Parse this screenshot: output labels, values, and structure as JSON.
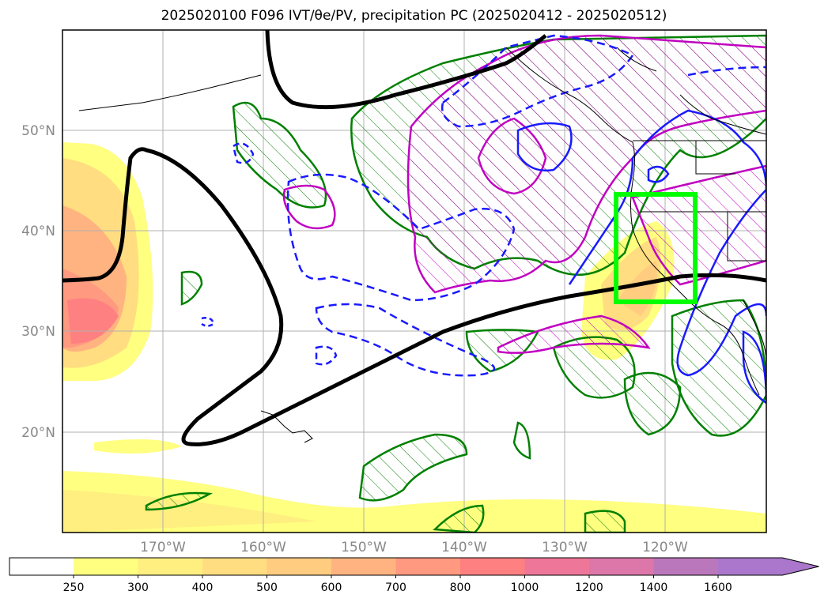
{
  "title": "2025020100 F096 IVT/θe/PV, precipitation PC (2025020412 - 2025020512)",
  "map": {
    "lat_labels": [
      "50°N",
      "40°N",
      "30°N",
      "20°N"
    ],
    "lon_labels": [
      "170°W",
      "160°W",
      "150°W",
      "140°W",
      "130°W",
      "120°W"
    ],
    "highlight_box_color": "#00ff00",
    "contour_colors": {
      "theta_e": "#000000",
      "pv_solid": "#1a1aff",
      "pv_dashed": "#1a1aff",
      "green": "#008000",
      "magenta": "#c000c0"
    }
  },
  "colorbar": {
    "ticks": [
      "250",
      "300",
      "400",
      "500",
      "600",
      "700",
      "800",
      "1000",
      "1200",
      "1400",
      "1600"
    ],
    "colors": [
      "#ffff80",
      "#ffee80",
      "#ffdd80",
      "#ffcc80",
      "#ffb380",
      "#ff9980",
      "#ff8080",
      "#ee7799",
      "#dd77aa",
      "#bb77bb",
      "#aa77cc"
    ]
  }
}
